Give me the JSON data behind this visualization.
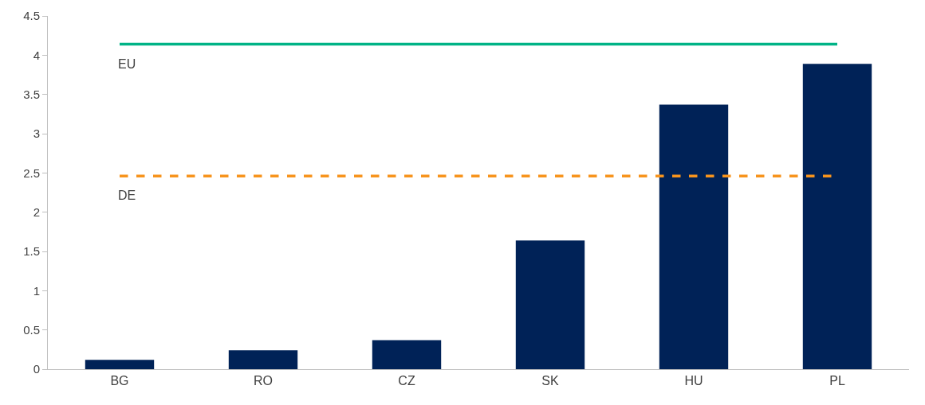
{
  "chart_data": {
    "type": "bar",
    "categories": [
      "BG",
      "RO",
      "CZ",
      "SK",
      "HU",
      "PL"
    ],
    "values": [
      0.12,
      0.24,
      0.37,
      1.64,
      3.37,
      3.89
    ],
    "color": "#002257",
    "ylim": [
      0,
      4.5
    ],
    "yticks": [
      0,
      0.5,
      1,
      1.5,
      2,
      2.5,
      3,
      3.5,
      4,
      4.5
    ],
    "grid": false,
    "legend": false,
    "ref_lines": [
      {
        "axis": "y",
        "value": 4.14,
        "label": "EU",
        "color": "#00b386",
        "line_style": "solid"
      },
      {
        "axis": "y",
        "value": 2.46,
        "label": "DE",
        "color": "#f7941d",
        "line_style": "dashed"
      }
    ]
  }
}
